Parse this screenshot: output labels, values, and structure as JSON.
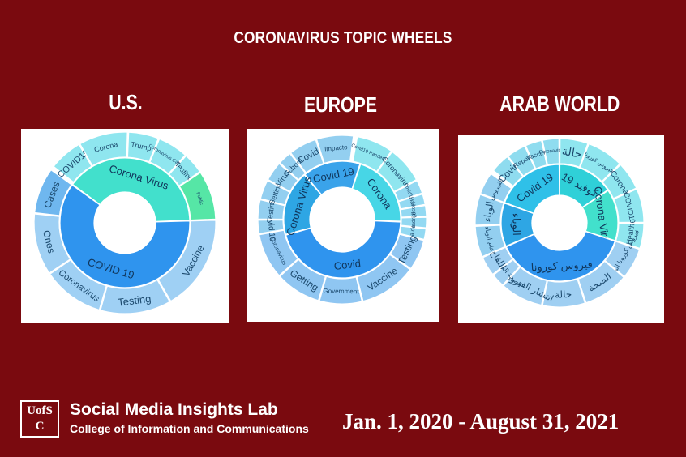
{
  "page_title": "CORONAVIRUS TOPIC WHEELS",
  "regions": [
    {
      "name": "U.S.",
      "inner": [
        {
          "label": "Corona Virus",
          "color": "#42e0cc"
        },
        {
          "label": "COVID 19",
          "color": "#2f94ee"
        }
      ],
      "outer": [
        {
          "label": "COVID19",
          "color": "#8fe6ef"
        },
        {
          "label": "Corona",
          "color": "#8fe6ef"
        },
        {
          "label": "Trump",
          "color": "#8fe6ef"
        },
        {
          "label": "Coronavirus Cases",
          "color": "#8fe6ef"
        },
        {
          "label": "Testing",
          "color": "#8fe6ef"
        },
        {
          "label": "Public",
          "color": "#56e6a6"
        },
        {
          "label": "Vaccine",
          "color": "#9fd0f4"
        },
        {
          "label": "Testing",
          "color": "#9fd0f4"
        },
        {
          "label": "Coronavirus",
          "color": "#9fd0f4"
        },
        {
          "label": "Ones",
          "color": "#9fd0f4"
        },
        {
          "label": "Cases",
          "color": "#6fb7ef"
        }
      ]
    },
    {
      "name": "EUROPE",
      "inner": [
        {
          "label": "Covid 19",
          "color": "#3aa3ea"
        },
        {
          "label": "Corona",
          "color": "#47d6e6"
        },
        {
          "label": "Covid",
          "color": "#2f94ee"
        },
        {
          "label": "Corona Virus",
          "color": "#2ea6e4"
        }
      ],
      "outer": [
        {
          "label": "Covid",
          "color": "#93cff0"
        },
        {
          "label": "Impacto",
          "color": "#93cff0"
        },
        {
          "label": "Covid19 Pandemia",
          "color": "#8fe6ef"
        },
        {
          "label": "Coronavirus",
          "color": "#8fe6ef"
        },
        {
          "label": "Covid19",
          "color": "#93d9f2"
        },
        {
          "label": "Han",
          "color": "#93d9f2"
        },
        {
          "label": "Hospital",
          "color": "#93d9f2"
        },
        {
          "label": "Madrid",
          "color": "#93d9f2"
        },
        {
          "label": "La de",
          "color": "#93d9f2"
        },
        {
          "label": "Testing",
          "color": "#8fc6f2"
        },
        {
          "label": "Vaccine",
          "color": "#8fc6f2"
        },
        {
          "label": "Government",
          "color": "#8fc6f2"
        },
        {
          "label": "Getting",
          "color": "#8fc6f2"
        },
        {
          "label": "Coronavirus",
          "color": "#8fc6f2"
        },
        {
          "label": "Covid 19",
          "color": "#93cff0"
        },
        {
          "label": "Testing",
          "color": "#93cff0"
        },
        {
          "label": "Getting",
          "color": "#93cff0"
        },
        {
          "label": "Virus",
          "color": "#93cff0"
        },
        {
          "label": "School",
          "color": "#93cff0"
        }
      ]
    },
    {
      "name": "ARAB WORLD",
      "inner": [
        {
          "label": "Covid 19",
          "color": "#2fc0e8"
        },
        {
          "label": "كوفيد 19",
          "color": "#2fd0d8"
        },
        {
          "label": "Corona Virus",
          "color": "#42e0cc"
        },
        {
          "label": "فيروس كورونا",
          "color": "#2f94ee"
        },
        {
          "label": "الوباء",
          "color": "#2ea6e4"
        }
      ],
      "outer": [
        {
          "label": "Covid",
          "color": "#8fdcef"
        },
        {
          "label": "Report",
          "color": "#8fdcef"
        },
        {
          "label": "Vaccine",
          "color": "#8fdcef"
        },
        {
          "label": "Coronavirus",
          "color": "#8fdcef"
        },
        {
          "label": "حالة",
          "color": "#8fe6ef"
        },
        {
          "label": "فيروس كورونا",
          "color": "#8fe6ef"
        },
        {
          "label": "Corona",
          "color": "#8fe6ef"
        },
        {
          "label": "COVID19",
          "color": "#8fe6ef"
        },
        {
          "label": "Health",
          "color": "#8fe6ef"
        },
        {
          "label": "فيروس كورونا المستجد",
          "color": "#9fcff2"
        },
        {
          "label": "الصحة",
          "color": "#9fcff2"
        },
        {
          "label": "حالة",
          "color": "#9fcff2"
        },
        {
          "label": "انتشار الفيروس",
          "color": "#9fcff2"
        },
        {
          "label": "الصحة العالمية",
          "color": "#9fcff2"
        },
        {
          "label": "اللقاح",
          "color": "#9fcff2"
        },
        {
          "label": "عام الوباء",
          "color": "#93cff0"
        },
        {
          "label": "الوباء",
          "color": "#93cff0"
        },
        {
          "label": "الفيروس",
          "color": "#93cff0"
        }
      ]
    }
  ],
  "footer": {
    "logo_text_line1": "UofSC",
    "lab_name": "Social Media Insights Lab",
    "lab_subtitle": "College of Information and Communications",
    "date_range": "Jan. 1, 2020 - August 31, 2021"
  }
}
